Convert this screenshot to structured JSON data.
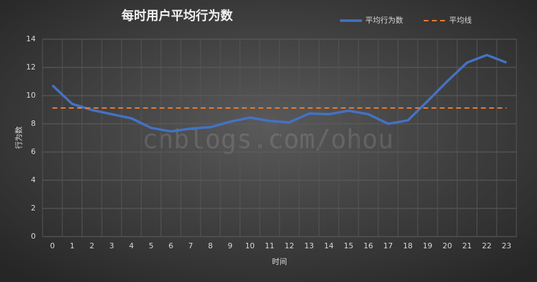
{
  "chart_data": {
    "type": "line",
    "title": "每时用户平均行为数",
    "x_label": "时间",
    "y_label": "行为数",
    "watermark": "cnblogs.com/ohou",
    "categories": [
      "0",
      "1",
      "2",
      "3",
      "4",
      "5",
      "6",
      "7",
      "8",
      "9",
      "10",
      "11",
      "12",
      "13",
      "14",
      "15",
      "16",
      "17",
      "18",
      "19",
      "20",
      "21",
      "22",
      "23"
    ],
    "series": [
      {
        "name": "平均行为数",
        "color": "#4472c4",
        "dashed": false,
        "values": [
          10.73,
          9.41,
          8.98,
          8.68,
          8.39,
          7.71,
          7.46,
          7.66,
          7.76,
          8.15,
          8.44,
          8.2,
          8.1,
          8.73,
          8.68,
          8.93,
          8.68,
          8.0,
          8.24,
          9.61,
          11.02,
          12.34,
          12.88,
          12.34
        ]
      },
      {
        "name": "平均线",
        "color": "#ed7d31",
        "dashed": true,
        "values": [
          9.12,
          9.12,
          9.12,
          9.12,
          9.12,
          9.12,
          9.12,
          9.12,
          9.12,
          9.12,
          9.12,
          9.12,
          9.12,
          9.12,
          9.12,
          9.12,
          9.12,
          9.12,
          9.12,
          9.12,
          9.12,
          9.12,
          9.12,
          9.12
        ]
      }
    ],
    "ylim": [
      0,
      14
    ],
    "yticks": [
      0,
      2,
      4,
      6,
      8,
      10,
      12,
      14
    ],
    "grid": true,
    "legend": "top-right"
  }
}
